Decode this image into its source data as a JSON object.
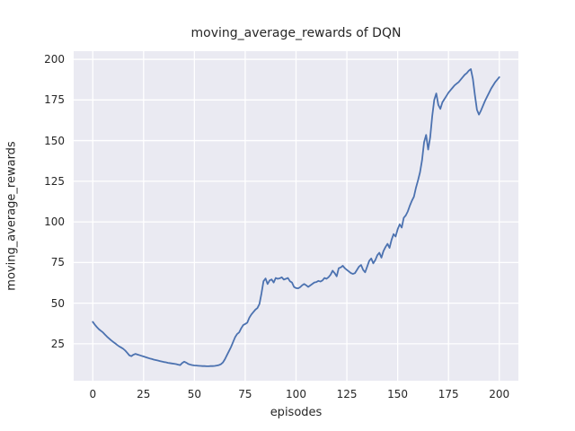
{
  "title": "moving_average_rewards of DQN",
  "axes": {
    "xlabel": "episodes",
    "ylabel": "moving_average_rewards"
  },
  "chart_data": {
    "type": "line",
    "title": "moving_average_rewards of DQN",
    "xlabel": "episodes",
    "ylabel": "moving_average_rewards",
    "legend": "none",
    "grid": true,
    "style": "seaborn-darkgrid",
    "plot_bg": "#eaeaf2",
    "grid_color": "#ffffff",
    "line_color": "#4c72b0",
    "text_color": "#262626",
    "xlim": [
      -9.4,
      209.4
    ],
    "ylim": [
      2.3,
      205.0
    ],
    "x_ticks": [
      0,
      25,
      50,
      75,
      100,
      125,
      150,
      175,
      200
    ],
    "y_ticks": [
      25,
      50,
      75,
      100,
      125,
      150,
      175,
      200
    ],
    "series": [
      {
        "name": "DQN moving average reward",
        "x_start": 0,
        "x_step": 1,
        "y": [
          38.5,
          36.8,
          35.3,
          34.0,
          33.0,
          32.0,
          30.7,
          29.4,
          28.3,
          27.2,
          26.2,
          25.3,
          24.3,
          23.4,
          22.7,
          21.9,
          20.8,
          19.4,
          17.9,
          17.4,
          18.3,
          18.8,
          18.4,
          18.0,
          17.6,
          17.2,
          16.8,
          16.4,
          16.0,
          15.7,
          15.3,
          15.0,
          14.7,
          14.4,
          14.1,
          13.8,
          13.6,
          13.3,
          13.1,
          12.9,
          12.7,
          12.5,
          12.2,
          11.9,
          13.2,
          14.0,
          13.4,
          12.6,
          12.2,
          11.9,
          11.7,
          11.6,
          11.5,
          11.4,
          11.3,
          11.3,
          11.2,
          11.2,
          11.3,
          11.3,
          11.4,
          11.6,
          11.9,
          12.4,
          13.5,
          15.5,
          18.0,
          20.5,
          23.0,
          26.0,
          29.0,
          31.0,
          32.0,
          34.5,
          36.5,
          37.2,
          38.0,
          41.0,
          43.0,
          44.5,
          46.0,
          47.0,
          49.5,
          56.0,
          63.5,
          65.2,
          61.8,
          64.0,
          64.6,
          62.7,
          65.5,
          65.0,
          65.3,
          65.9,
          64.5,
          65.0,
          65.5,
          63.5,
          62.7,
          60.0,
          59.3,
          59.1,
          59.8,
          61.0,
          61.8,
          61.0,
          60.0,
          60.9,
          61.8,
          62.7,
          63.0,
          63.7,
          63.3,
          64.0,
          65.5,
          65.0,
          66.0,
          67.5,
          70.0,
          68.5,
          66.5,
          71.5,
          72.0,
          73.0,
          71.5,
          70.5,
          69.5,
          68.5,
          68.0,
          68.5,
          70.5,
          72.5,
          73.5,
          70.5,
          69.0,
          72.5,
          76.0,
          77.5,
          74.5,
          76.5,
          79.5,
          81.0,
          78.0,
          82.0,
          84.5,
          86.5,
          84.0,
          89.0,
          92.5,
          91.0,
          95.5,
          98.5,
          96.5,
          102.5,
          104.0,
          106.5,
          110.0,
          113.0,
          115.5,
          121.0,
          125.5,
          130.5,
          138.0,
          149.0,
          153.5,
          144.5,
          152.0,
          165.0,
          175.0,
          179.0,
          172.0,
          169.5,
          173.5,
          175.5,
          177.5,
          179.5,
          181.0,
          182.5,
          184.0,
          185.0,
          186.0,
          187.5,
          189.0,
          190.5,
          191.5,
          193.0,
          194.0,
          188.0,
          178.0,
          169.0,
          166.0,
          168.5,
          171.5,
          174.5,
          177.0,
          179.5,
          182.0,
          184.0,
          186.0,
          187.5,
          189.0
        ]
      }
    ]
  }
}
